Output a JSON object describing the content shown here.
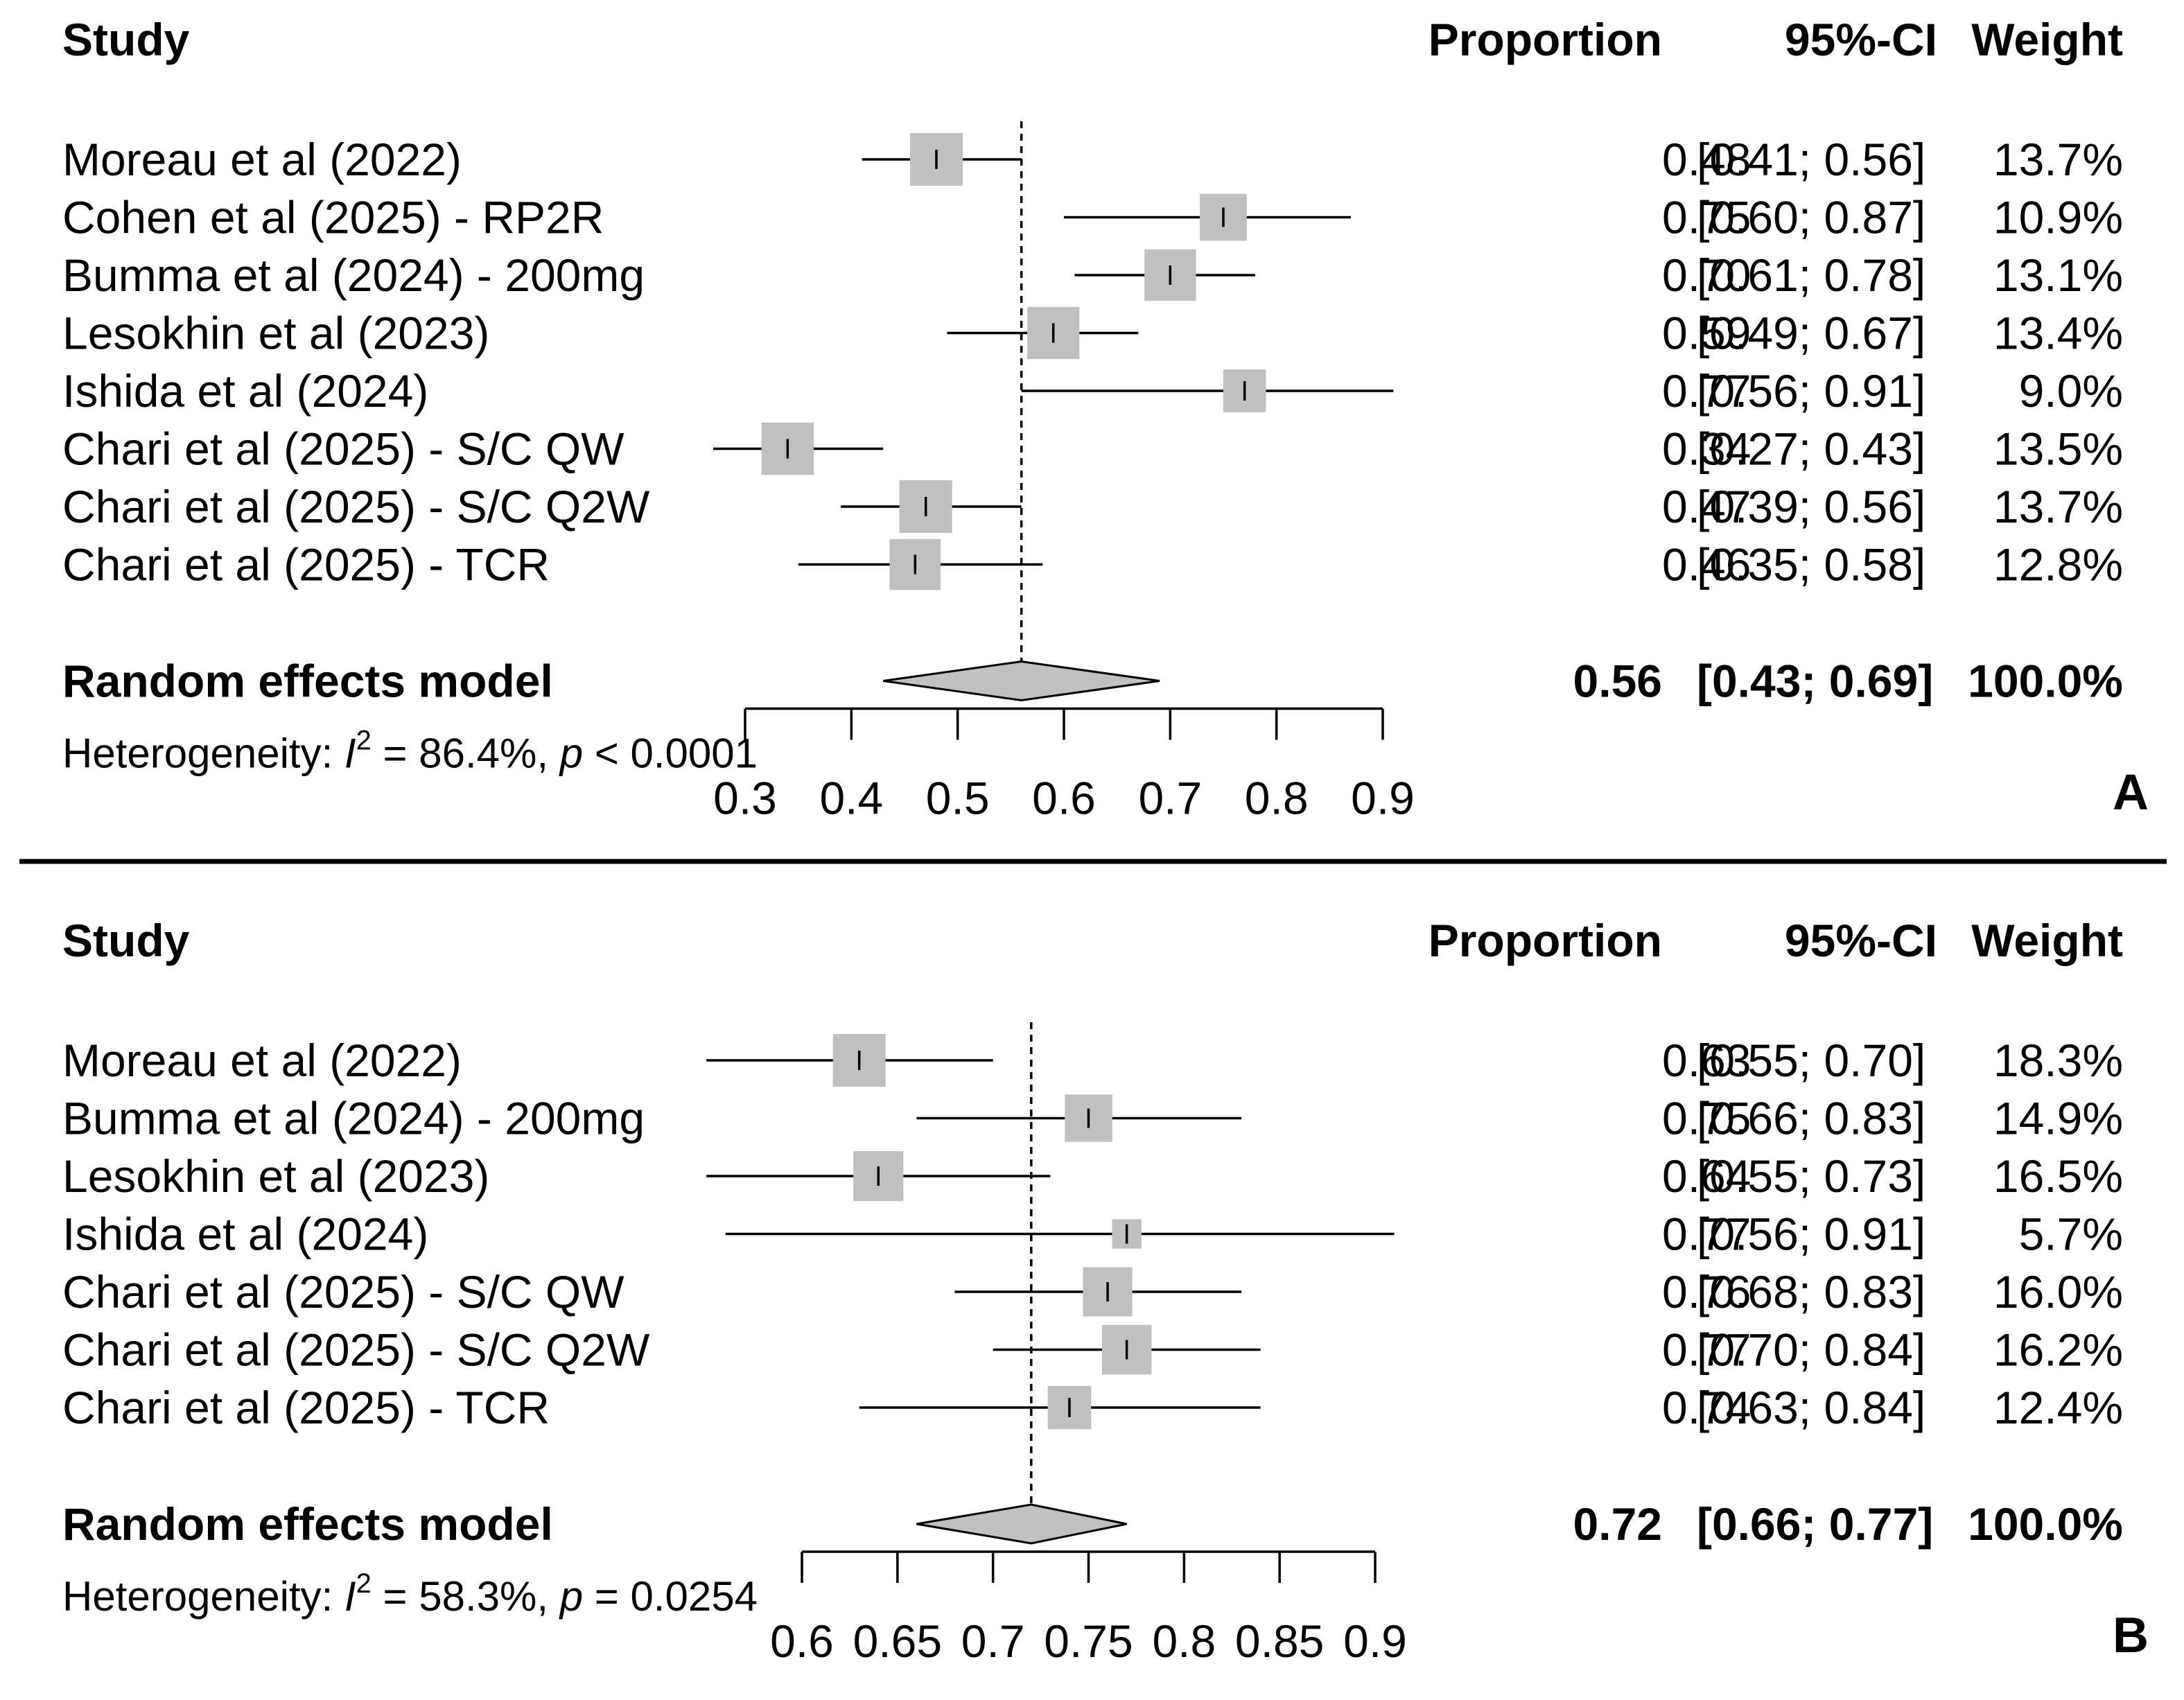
{
  "colors": {
    "text": "#000000",
    "box_fill": "#c0c0c0",
    "diamond_fill": "#c0c0c0",
    "line": "#000000",
    "divider": "#000000"
  },
  "chart_data": [
    {
      "type": "forest",
      "panel_label": "A",
      "headers": {
        "study": "Study",
        "proportion": "Proportion",
        "ci": "95%-CI",
        "weight": "Weight"
      },
      "xlim": [
        0.3,
        0.9
      ],
      "x_ticks": [
        0.3,
        0.4,
        0.5,
        0.6,
        0.7,
        0.8,
        0.9
      ],
      "x_tick_labels": [
        "0.3",
        "0.4",
        "0.5",
        "0.6",
        "0.7",
        "0.8",
        "0.9"
      ],
      "studies": [
        {
          "name": "Moreau et al (2022)",
          "est": 0.48,
          "lo": 0.41,
          "hi": 0.56,
          "weight": 13.7,
          "prop_label": "0.48",
          "ci_label": "[0.41; 0.56]",
          "weight_label": "13.7%"
        },
        {
          "name": "Cohen et al (2025) - RP2R",
          "est": 0.75,
          "lo": 0.6,
          "hi": 0.87,
          "weight": 10.9,
          "prop_label": "0.75",
          "ci_label": "[0.60; 0.87]",
          "weight_label": "10.9%"
        },
        {
          "name": "Bumma et al (2024) - 200mg",
          "est": 0.7,
          "lo": 0.61,
          "hi": 0.78,
          "weight": 13.1,
          "prop_label": "0.70",
          "ci_label": "[0.61; 0.78]",
          "weight_label": "13.1%"
        },
        {
          "name": "Lesokhin et al (2023)",
          "est": 0.59,
          "lo": 0.49,
          "hi": 0.67,
          "weight": 13.4,
          "prop_label": "0.59",
          "ci_label": "[0.49; 0.67]",
          "weight_label": "13.4%"
        },
        {
          "name": "Ishida et al (2024)",
          "est": 0.77,
          "lo": 0.56,
          "hi": 0.91,
          "weight": 9.0,
          "prop_label": "0.77",
          "ci_label": "[0.56; 0.91]",
          "weight_label": "9.0%"
        },
        {
          "name": "Chari et al (2025) - S/C QW",
          "est": 0.34,
          "lo": 0.27,
          "hi": 0.43,
          "weight": 13.5,
          "prop_label": "0.34",
          "ci_label": "[0.27; 0.43]",
          "weight_label": "13.5%"
        },
        {
          "name": "Chari et al (2025) - S/C Q2W",
          "est": 0.47,
          "lo": 0.39,
          "hi": 0.56,
          "weight": 13.7,
          "prop_label": "0.47",
          "ci_label": "[0.39; 0.56]",
          "weight_label": "13.7%"
        },
        {
          "name": "Chari et al (2025) - TCR",
          "est": 0.46,
          "lo": 0.35,
          "hi": 0.58,
          "weight": 12.8,
          "prop_label": "0.46",
          "ci_label": "[0.35; 0.58]",
          "weight_label": "12.8%"
        }
      ],
      "pooled": {
        "name": "Random effects model",
        "est": 0.56,
        "lo": 0.43,
        "hi": 0.69,
        "prop_label": "0.56",
        "ci_label": "[0.43; 0.69]",
        "weight_label": "100.0%"
      },
      "heterogeneity": {
        "prefix": "Heterogeneity: ",
        "i_symbol": "I",
        "i_sup": "2",
        "i2_text": " = 86.4%, ",
        "p_symbol": "p",
        "p_text": " < 0.0001"
      }
    },
    {
      "type": "forest",
      "panel_label": "B",
      "headers": {
        "study": "Study",
        "proportion": "Proportion",
        "ci": "95%-CI",
        "weight": "Weight"
      },
      "xlim": [
        0.6,
        0.9
      ],
      "x_ticks": [
        0.6,
        0.65,
        0.7,
        0.75,
        0.8,
        0.85,
        0.9
      ],
      "x_tick_labels": [
        "0.6",
        "0.65",
        "0.7",
        "0.75",
        "0.8",
        "0.85",
        "0.9"
      ],
      "studies": [
        {
          "name": "Moreau et al (2022)",
          "est": 0.63,
          "lo": 0.55,
          "hi": 0.7,
          "weight": 18.3,
          "prop_label": "0.63",
          "ci_label": "[0.55; 0.70]",
          "weight_label": "18.3%"
        },
        {
          "name": "Bumma et al (2024) - 200mg",
          "est": 0.75,
          "lo": 0.66,
          "hi": 0.83,
          "weight": 14.9,
          "prop_label": "0.75",
          "ci_label": "[0.66; 0.83]",
          "weight_label": "14.9%"
        },
        {
          "name": "Lesokhin et al (2023)",
          "est": 0.64,
          "lo": 0.55,
          "hi": 0.73,
          "weight": 16.5,
          "prop_label": "0.64",
          "ci_label": "[0.55; 0.73]",
          "weight_label": "16.5%"
        },
        {
          "name": "Ishida et al (2024)",
          "est": 0.77,
          "lo": 0.56,
          "hi": 0.91,
          "weight": 5.7,
          "prop_label": "0.77",
          "ci_label": "[0.56; 0.91]",
          "weight_label": "5.7%"
        },
        {
          "name": "Chari et al (2025) - S/C QW",
          "est": 0.76,
          "lo": 0.68,
          "hi": 0.83,
          "weight": 16.0,
          "prop_label": "0.76",
          "ci_label": "[0.68; 0.83]",
          "weight_label": "16.0%"
        },
        {
          "name": "Chari et al (2025) - S/C Q2W",
          "est": 0.77,
          "lo": 0.7,
          "hi": 0.84,
          "weight": 16.2,
          "prop_label": "0.77",
          "ci_label": "[0.70; 0.84]",
          "weight_label": "16.2%"
        },
        {
          "name": "Chari et al (2025) - TCR",
          "est": 0.74,
          "lo": 0.63,
          "hi": 0.84,
          "weight": 12.4,
          "prop_label": "0.74",
          "ci_label": "[0.63; 0.84]",
          "weight_label": "12.4%"
        }
      ],
      "pooled": {
        "name": "Random effects model",
        "est": 0.72,
        "lo": 0.66,
        "hi": 0.77,
        "prop_label": "0.72",
        "ci_label": "[0.66; 0.77]",
        "weight_label": "100.0%"
      },
      "heterogeneity": {
        "prefix": "Heterogeneity: ",
        "i_symbol": "I",
        "i_sup": "2",
        "i2_text": " = 58.3%, ",
        "p_symbol": "p",
        "p_text": " = 0.0254"
      }
    }
  ]
}
